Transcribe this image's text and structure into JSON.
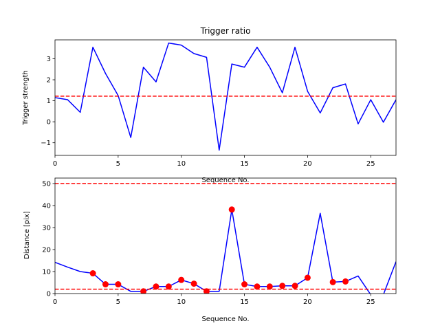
{
  "chart_data": [
    {
      "type": "line",
      "title": "Trigger ratio",
      "xlabel": "Sequence No.",
      "ylabel": "Trigger strength",
      "xlim": [
        0,
        27
      ],
      "ylim": [
        -1.6,
        3.9
      ],
      "xticks": [
        0,
        5,
        10,
        15,
        20,
        25
      ],
      "yticks": [
        -1,
        0,
        1,
        2,
        3
      ],
      "grid": false,
      "series": [
        {
          "color": "#0000ff",
          "x": [
            0,
            1,
            2,
            3,
            4,
            5,
            6,
            7,
            8,
            9,
            10,
            11,
            12,
            13,
            14,
            15,
            16,
            17,
            18,
            19,
            20,
            21,
            22,
            23,
            24,
            25,
            26,
            27
          ],
          "y": [
            1.15,
            1.05,
            0.45,
            3.55,
            2.3,
            1.25,
            -0.75,
            2.6,
            1.9,
            3.75,
            3.65,
            3.25,
            3.07,
            -1.35,
            2.75,
            2.6,
            3.55,
            2.6,
            1.38,
            3.55,
            1.45,
            0.42,
            1.62,
            1.8,
            -0.1,
            1.05,
            -0.02,
            1.05
          ]
        }
      ],
      "hlines": [
        {
          "y": 1.22,
          "color": "#ff0000",
          "style": "dashed"
        }
      ]
    },
    {
      "type": "line",
      "title": "",
      "xlabel": "Sequence No.",
      "ylabel": "Distance [pix]",
      "xlim": [
        0,
        27
      ],
      "ylim": [
        0,
        52.5
      ],
      "xticks": [
        0,
        5,
        10,
        15,
        20,
        25
      ],
      "yticks": [
        0,
        10,
        20,
        30,
        40,
        50
      ],
      "grid": false,
      "series": [
        {
          "color": "#0000ff",
          "x": [
            0,
            1,
            2,
            3,
            4,
            5,
            6,
            7,
            8,
            9,
            10,
            11,
            12,
            13,
            14,
            15,
            16,
            17,
            18,
            19,
            20,
            21,
            22,
            23,
            24,
            25,
            26,
            27
          ],
          "y": [
            14.2,
            12,
            10,
            9.2,
            4.2,
            4.2,
            1,
            1,
            3.2,
            3.2,
            6.2,
            4.5,
            1,
            1,
            38.2,
            4.2,
            3.2,
            3.2,
            3.5,
            3.5,
            7.2,
            36.5,
            5.2,
            5.5,
            8,
            -0.5,
            -0.5,
            14.5
          ]
        }
      ],
      "markers": {
        "color": "#ff0000",
        "x": [
          3,
          4,
          5,
          7,
          8,
          9,
          10,
          11,
          12,
          14,
          15,
          16,
          17,
          18,
          19,
          20,
          22,
          23
        ],
        "y": [
          9.2,
          4.2,
          4.2,
          1,
          3.2,
          3.2,
          6.2,
          4.5,
          1,
          38.2,
          4.2,
          3.2,
          3.2,
          3.5,
          3.5,
          7.2,
          5.2,
          5.5
        ]
      },
      "hlines": [
        {
          "y": 50,
          "color": "#ff0000",
          "style": "dashed"
        },
        {
          "y": 2,
          "color": "#ff0000",
          "style": "dashed"
        }
      ]
    }
  ]
}
